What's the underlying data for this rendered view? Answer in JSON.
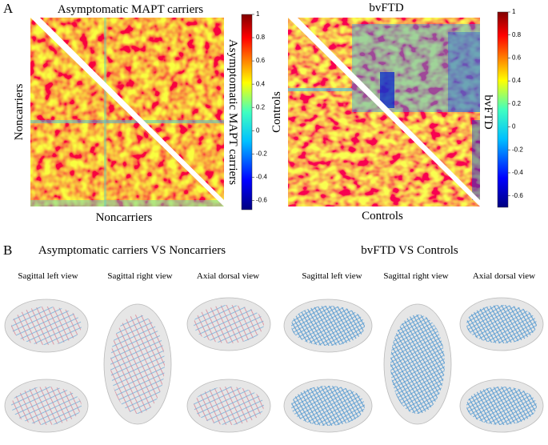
{
  "panel_a": {
    "label": "A",
    "matrices": [
      {
        "title": "Asymptomatic MAPT carriers",
        "right_label": "Asymptomatic MAPT carriers",
        "left_label": "Noncarriers",
        "bottom_label": "Noncarriers",
        "colorbar": {
          "lim": [
            -0.68,
            1
          ],
          "ticks": [
            1,
            0.8,
            0.6,
            0.4,
            0.2,
            0,
            -0.2,
            -0.4,
            -0.6
          ]
        }
      },
      {
        "title": "bvFTD",
        "right_label": "bvFTD",
        "left_label": "Controls",
        "bottom_label": "Controls",
        "colorbar": {
          "lim": [
            -0.7,
            1
          ],
          "ticks": [
            1,
            0.8,
            0.6,
            0.4,
            0.2,
            0,
            -0.2,
            -0.4,
            -0.6
          ]
        }
      }
    ]
  },
  "panel_b": {
    "label": "B",
    "groups": [
      {
        "title": "Asymptomatic carriers VS Noncarriers",
        "views": [
          "Sagittal left view",
          "Sagittal right view",
          "Axial dorsal view"
        ]
      },
      {
        "title": "bvFTD VS Controls",
        "views": [
          "Sagittal left view",
          "Sagittal right view",
          "Axial dorsal view"
        ]
      }
    ]
  }
}
